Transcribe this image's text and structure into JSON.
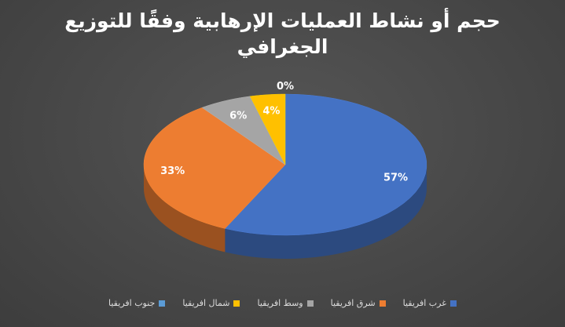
{
  "chart_data": {
    "type": "pie",
    "style": "3d",
    "title": "حجم أو نشاط العمليات الإرهابية وفقًا للتوزيع الجغرافي",
    "categories": [
      "غرب افريقيا",
      "شرق افريقيا",
      "وسط افريقيا",
      "شمال افريقيا",
      "جنوب افريقيا"
    ],
    "values": [
      57,
      33,
      6,
      4,
      0
    ],
    "data_labels": [
      "57%",
      "33%",
      "6%",
      "4%",
      "0%"
    ],
    "colors": [
      "#4472C4",
      "#ED7D31",
      "#A5A5A5",
      "#FFC000",
      "#5B9BD5"
    ],
    "legend_position": "bottom"
  }
}
